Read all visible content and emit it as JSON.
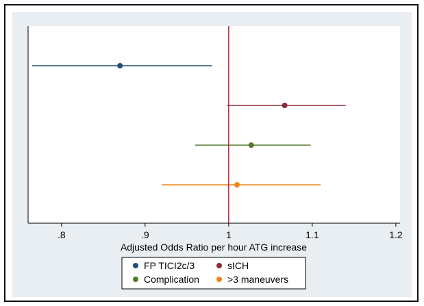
{
  "chart_data": {
    "type": "scatter",
    "subtype": "forest-plot",
    "xlabel": "Adjusted Odds Ratio per hour ATG increase",
    "xticks": [
      0.8,
      0.9,
      1.0,
      1.1,
      1.2
    ],
    "xtick_labels": [
      ".8",
      ".9",
      "1",
      "1.1",
      "1.2"
    ],
    "xlim": [
      0.76,
      1.205
    ],
    "reference_line": 1.0,
    "grid": false,
    "legend_position": "bottom",
    "series": [
      {
        "name": "FP TICI2c/3",
        "estimate": 0.87,
        "lower": 0.765,
        "upper": 0.98,
        "color": "#1f4e79"
      },
      {
        "name": "sICH",
        "estimate": 1.067,
        "lower": 0.998,
        "upper": 1.14,
        "color": "#8b2a3a"
      },
      {
        "name": "Complication",
        "estimate": 1.027,
        "lower": 0.96,
        "upper": 1.098,
        "color": "#557a2e"
      },
      {
        "name": ">3 maneuvers",
        "estimate": 1.01,
        "lower": 0.92,
        "upper": 1.11,
        "color": "#e8891a"
      }
    ],
    "reference_line_color": "#b5223a"
  }
}
